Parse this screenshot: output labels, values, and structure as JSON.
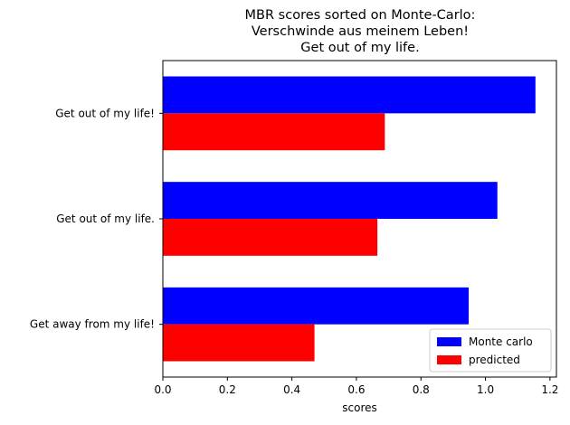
{
  "chart_data": {
    "type": "bar",
    "orientation": "horizontal",
    "title_lines": [
      "MBR scores sorted on Monte-Carlo:",
      "Verschwinde aus meinem Leben!",
      "Get out of my life."
    ],
    "xlabel": "scores",
    "ylabel": "",
    "categories": [
      "Get out of my life!",
      "Get out of my life.",
      "Get away from my life!"
    ],
    "series": [
      {
        "name": "Monte carlo",
        "color": "#0000ff",
        "values": [
          1.155,
          1.037,
          0.948
        ]
      },
      {
        "name": "predicted",
        "color": "#ff0000",
        "values": [
          0.688,
          0.665,
          0.47
        ]
      }
    ],
    "xlim": [
      0,
      1.22
    ],
    "xticks": [
      0.0,
      0.2,
      0.4,
      0.6,
      0.8,
      1.0,
      1.2
    ],
    "xtick_labels": [
      "0.0",
      "0.2",
      "0.4",
      "0.6",
      "0.8",
      "1.0",
      "1.2"
    ],
    "grid": false,
    "legend_position": "lower-right"
  }
}
